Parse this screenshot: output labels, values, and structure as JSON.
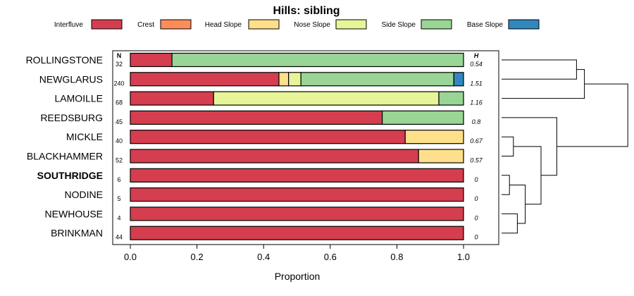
{
  "chart_data": {
    "type": "bar",
    "orientation": "horizontal",
    "stacked": true,
    "title": "Hills: sibling",
    "xlabel": "Proportion",
    "ylabel": "",
    "xlim": [
      0,
      1
    ],
    "xticks": [
      "0.0",
      "0.2",
      "0.4",
      "0.6",
      "0.8",
      "1.0"
    ],
    "n_header": "N",
    "h_header": "H",
    "legend_position": "top",
    "categories": [
      "ROLLINGSTONE",
      "NEWGLARUS",
      "LAMOILLE",
      "REEDSBURG",
      "MICKLE",
      "BLACKHAMMER",
      "SOUTHRIDGE",
      "NODINE",
      "NEWHOUSE",
      "BRINKMAN"
    ],
    "highlighted": "SOUTHRIDGE",
    "n": [
      "32",
      "240",
      "68",
      "45",
      "40",
      "52",
      "6",
      "5",
      "4",
      "44"
    ],
    "h": [
      "0.54",
      "1.51",
      "1.16",
      "0.8",
      "0.67",
      "0.57",
      "0",
      "0",
      "0",
      "0"
    ],
    "series": [
      {
        "name": "Interfluve",
        "color": "#d53e4f",
        "values": [
          0.125,
          0.446,
          0.25,
          0.756,
          0.825,
          0.865,
          1,
          1,
          1,
          1
        ]
      },
      {
        "name": "Crest",
        "color": "#fc8d59",
        "values": [
          0,
          0,
          0,
          0,
          0,
          0,
          0,
          0,
          0,
          0
        ]
      },
      {
        "name": "Head Slope",
        "color": "#fee08b",
        "values": [
          0,
          0.029,
          0,
          0,
          0.175,
          0.135,
          0,
          0,
          0,
          0
        ]
      },
      {
        "name": "Nose Slope",
        "color": "#e6f598",
        "values": [
          0,
          0.037,
          0.676,
          0,
          0,
          0,
          0,
          0,
          0,
          0
        ]
      },
      {
        "name": "Side Slope",
        "color": "#99d594",
        "values": [
          0.875,
          0.459,
          0.074,
          0.244,
          0,
          0,
          0,
          0,
          0,
          0
        ]
      },
      {
        "name": "Base Slope",
        "color": "#3288bd",
        "values": [
          0,
          0.029,
          0,
          0,
          0,
          0,
          0,
          0,
          0,
          0
        ]
      }
    ],
    "dendrogram": {
      "merges": [
        [
          -7,
          -8
        ],
        [
          -9,
          -10
        ],
        [
          1,
          2
        ],
        [
          -5,
          -6
        ],
        [
          3,
          4
        ],
        [
          -1,
          -2
        ],
        [
          -4,
          5
        ],
        [
          6,
          -3
        ],
        [
          8,
          7
        ]
      ],
      "heights": [
        0.1,
        0.2,
        0.3,
        0.15,
        0.5,
        0.95,
        0.7,
        1.05,
        1.6
      ]
    }
  }
}
